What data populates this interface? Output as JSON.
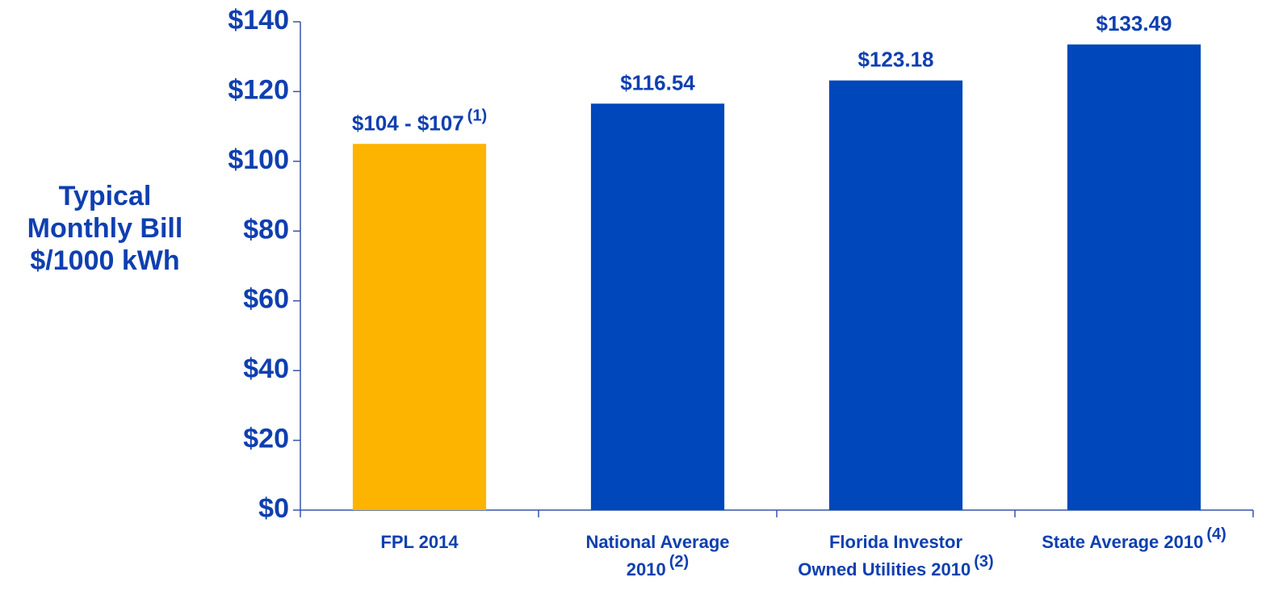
{
  "chart_data": {
    "type": "bar",
    "y_label": [
      "Typical",
      "Monthly Bill",
      "$/1000 kWh"
    ],
    "categories": [
      [
        "FPL 2014"
      ],
      [
        "National Average",
        "2010"
      ],
      [
        "Florida Investor",
        "Owned Utilities 2010"
      ],
      [
        "State Average 2010"
      ]
    ],
    "category_notes": [
      null,
      "(2)",
      "(3)",
      "(4)"
    ],
    "values": [
      105,
      116.54,
      123.18,
      133.49
    ],
    "value_labels": [
      "$104 - $107",
      "$116.54",
      "$123.18",
      "$133.49"
    ],
    "value_label_notes": [
      "(1)",
      null,
      null,
      null
    ],
    "colors": [
      "#fdb400",
      "#0047bb",
      "#0047bb",
      "#0047bb"
    ],
    "ylim": [
      0,
      140
    ],
    "yticks": [
      {
        "value": 0,
        "label": "$0"
      },
      {
        "value": 20,
        "label": "$20"
      },
      {
        "value": 40,
        "label": "$40"
      },
      {
        "value": 60,
        "label": "$60"
      },
      {
        "value": 80,
        "label": "$80"
      },
      {
        "value": 100,
        "label": "$100"
      },
      {
        "value": 120,
        "label": "$120"
      },
      {
        "value": 140,
        "label": "$140"
      }
    ],
    "grid": false
  }
}
